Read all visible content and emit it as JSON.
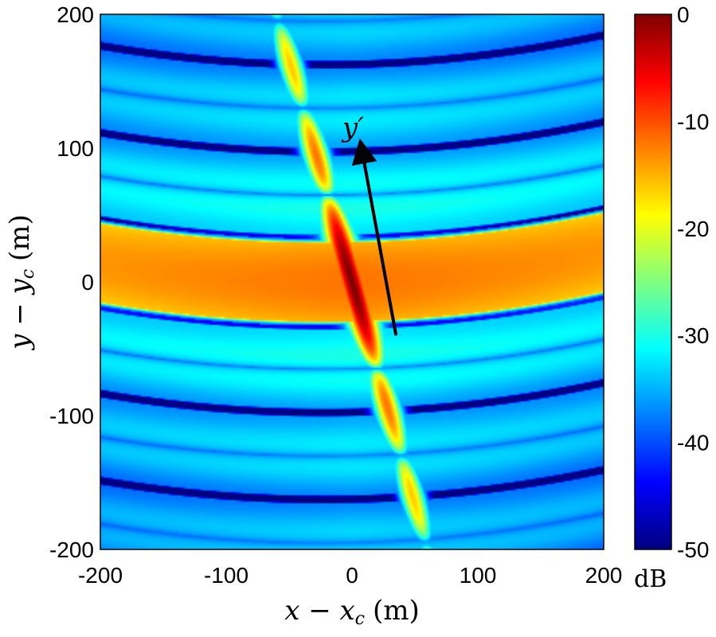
{
  "chart_data": {
    "type": "heatmap",
    "xlabel": "x − x_c (m)",
    "xlabel_main": "x − x",
    "xlabel_sub": "c",
    "xlabel_unit": "(m)",
    "ylabel": "y − y_c (m)",
    "ylabel_main": "y − y",
    "ylabel_sub": "c",
    "ylabel_unit": "(m)",
    "xlim": [
      -200,
      200
    ],
    "ylim": [
      -200,
      200
    ],
    "xticks": [
      -200,
      -100,
      0,
      100,
      200
    ],
    "yticks": [
      -200,
      -100,
      0,
      100,
      200
    ],
    "colorbar": {
      "label": "dB",
      "range": [
        -50,
        0
      ],
      "ticks": [
        0,
        -10,
        -20,
        -30,
        -40,
        -50
      ],
      "colormap": "jet"
    },
    "annotation": {
      "text": "y′",
      "arrow_from": [
        35,
        -40
      ],
      "arrow_to": [
        5,
        105
      ]
    },
    "field_model": {
      "peak_db": 0,
      "floor_db": -40,
      "main_band_db_at_center": -12,
      "fringe_spacing_m": 65,
      "ridge_direction_deg": -20,
      "description_free": true
    }
  }
}
